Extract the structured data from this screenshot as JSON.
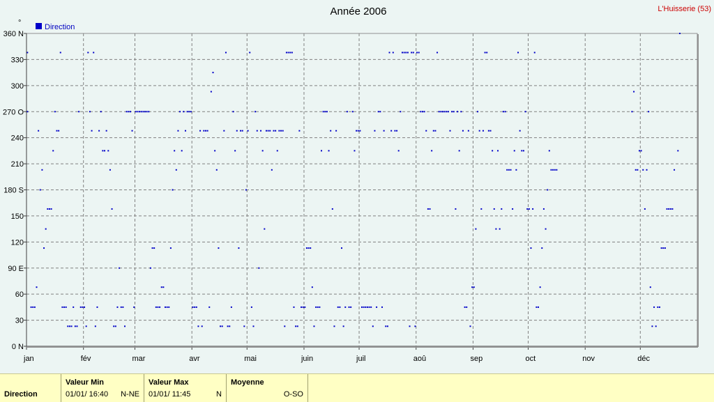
{
  "chart_data": {
    "type": "scatter",
    "title": "Année 2006",
    "station": "L'Huisserie (53)",
    "y_unit": "°",
    "legend": "Direction",
    "legend_position": "top-left",
    "grid": true,
    "ylim": [
      0,
      360
    ],
    "y_ticks": [
      {
        "v": 0,
        "label": "0  N"
      },
      {
        "v": 30,
        "label": "30"
      },
      {
        "v": 60,
        "label": "60"
      },
      {
        "v": 90,
        "label": "90  E"
      },
      {
        "v": 120,
        "label": "120"
      },
      {
        "v": 150,
        "label": "150"
      },
      {
        "v": 180,
        "label": "180 S"
      },
      {
        "v": 210,
        "label": "210"
      },
      {
        "v": 240,
        "label": "240"
      },
      {
        "v": 270,
        "label": "270 O"
      },
      {
        "v": 300,
        "label": "300"
      },
      {
        "v": 330,
        "label": "330"
      },
      {
        "v": 360,
        "label": "360 N"
      }
    ],
    "months": [
      "jan",
      "fév",
      "mar",
      "avr",
      "mai",
      "juin",
      "juil",
      "aoû",
      "sep",
      "oct",
      "nov",
      "déc"
    ],
    "colors": {
      "points": "#0000c8",
      "grid": "#808080",
      "plot_bg": "#ecf5f3"
    },
    "points": [
      [
        1,
        338
      ],
      [
        1,
        270
      ],
      [
        3,
        45
      ],
      [
        4,
        45
      ],
      [
        5,
        45
      ],
      [
        6,
        68
      ],
      [
        7,
        248
      ],
      [
        8,
        180
      ],
      [
        9,
        203
      ],
      [
        10,
        113
      ],
      [
        11,
        135
      ],
      [
        12,
        158
      ],
      [
        13,
        158
      ],
      [
        14,
        158
      ],
      [
        15,
        225
      ],
      [
        16,
        270
      ],
      [
        17,
        248
      ],
      [
        18,
        248
      ],
      [
        19,
        338
      ],
      [
        20,
        45
      ],
      [
        21,
        45
      ],
      [
        22,
        45
      ],
      [
        23,
        23
      ],
      [
        24,
        23
      ],
      [
        25,
        23
      ],
      [
        26,
        45
      ],
      [
        27,
        23
      ],
      [
        28,
        23
      ],
      [
        29,
        270
      ],
      [
        30,
        45
      ],
      [
        31,
        45
      ],
      [
        32,
        45
      ],
      [
        33,
        23
      ],
      [
        34,
        338
      ],
      [
        35,
        270
      ],
      [
        36,
        248
      ],
      [
        37,
        338
      ],
      [
        38,
        23
      ],
      [
        39,
        45
      ],
      [
        40,
        248
      ],
      [
        41,
        270
      ],
      [
        42,
        225
      ],
      [
        43,
        225
      ],
      [
        44,
        248
      ],
      [
        45,
        225
      ],
      [
        46,
        203
      ],
      [
        47,
        158
      ],
      [
        48,
        23
      ],
      [
        49,
        23
      ],
      [
        50,
        45
      ],
      [
        51,
        90
      ],
      [
        52,
        45
      ],
      [
        53,
        45
      ],
      [
        54,
        23
      ],
      [
        55,
        270
      ],
      [
        56,
        270
      ],
      [
        57,
        270
      ],
      [
        58,
        248
      ],
      [
        59,
        45
      ],
      [
        60,
        270
      ],
      [
        61,
        270
      ],
      [
        62,
        270
      ],
      [
        63,
        270
      ],
      [
        64,
        270
      ],
      [
        65,
        270
      ],
      [
        66,
        270
      ],
      [
        67,
        270
      ],
      [
        68,
        90
      ],
      [
        69,
        113
      ],
      [
        70,
        113
      ],
      [
        71,
        45
      ],
      [
        72,
        45
      ],
      [
        73,
        45
      ],
      [
        74,
        68
      ],
      [
        75,
        68
      ],
      [
        76,
        45
      ],
      [
        77,
        45
      ],
      [
        78,
        45
      ],
      [
        79,
        113
      ],
      [
        80,
        180
      ],
      [
        81,
        225
      ],
      [
        82,
        203
      ],
      [
        83,
        248
      ],
      [
        84,
        270
      ],
      [
        85,
        225
      ],
      [
        86,
        270
      ],
      [
        87,
        248
      ],
      [
        88,
        270
      ],
      [
        89,
        270
      ],
      [
        90,
        270
      ],
      [
        91,
        45
      ],
      [
        92,
        45
      ],
      [
        93,
        45
      ],
      [
        94,
        23
      ],
      [
        95,
        248
      ],
      [
        96,
        23
      ],
      [
        97,
        248
      ],
      [
        98,
        248
      ],
      [
        99,
        248
      ],
      [
        100,
        45
      ],
      [
        101,
        293
      ],
      [
        102,
        315
      ],
      [
        103,
        225
      ],
      [
        104,
        203
      ],
      [
        105,
        113
      ],
      [
        106,
        23
      ],
      [
        107,
        23
      ],
      [
        108,
        248
      ],
      [
        109,
        338
      ],
      [
        110,
        23
      ],
      [
        111,
        23
      ],
      [
        112,
        45
      ],
      [
        113,
        270
      ],
      [
        114,
        225
      ],
      [
        115,
        248
      ],
      [
        116,
        113
      ],
      [
        117,
        248
      ],
      [
        118,
        248
      ],
      [
        119,
        23
      ],
      [
        120,
        180
      ],
      [
        121,
        248
      ],
      [
        122,
        338
      ],
      [
        123,
        45
      ],
      [
        124,
        23
      ],
      [
        125,
        270
      ],
      [
        126,
        248
      ],
      [
        127,
        90
      ],
      [
        128,
        248
      ],
      [
        129,
        225
      ],
      [
        130,
        135
      ],
      [
        131,
        248
      ],
      [
        132,
        248
      ],
      [
        133,
        248
      ],
      [
        134,
        203
      ],
      [
        135,
        248
      ],
      [
        136,
        248
      ],
      [
        137,
        225
      ],
      [
        138,
        248
      ],
      [
        139,
        248
      ],
      [
        140,
        248
      ],
      [
        141,
        23
      ],
      [
        142,
        338
      ],
      [
        143,
        338
      ],
      [
        144,
        338
      ],
      [
        145,
        338
      ],
      [
        146,
        45
      ],
      [
        147,
        23
      ],
      [
        148,
        23
      ],
      [
        149,
        248
      ],
      [
        150,
        45
      ],
      [
        151,
        45
      ],
      [
        152,
        45
      ],
      [
        153,
        113
      ],
      [
        154,
        113
      ],
      [
        155,
        113
      ],
      [
        156,
        68
      ],
      [
        157,
        23
      ],
      [
        158,
        45
      ],
      [
        159,
        45
      ],
      [
        160,
        45
      ],
      [
        161,
        225
      ],
      [
        162,
        270
      ],
      [
        163,
        270
      ],
      [
        164,
        270
      ],
      [
        165,
        225
      ],
      [
        166,
        248
      ],
      [
        167,
        158
      ],
      [
        168,
        23
      ],
      [
        169,
        248
      ],
      [
        170,
        45
      ],
      [
        171,
        45
      ],
      [
        172,
        113
      ],
      [
        173,
        23
      ],
      [
        174,
        45
      ],
      [
        175,
        270
      ],
      [
        176,
        45
      ],
      [
        177,
        45
      ],
      [
        178,
        270
      ],
      [
        179,
        225
      ],
      [
        180,
        248
      ],
      [
        181,
        248
      ],
      [
        182,
        248
      ],
      [
        183,
        45
      ],
      [
        184,
        45
      ],
      [
        185,
        45
      ],
      [
        186,
        45
      ],
      [
        187,
        45
      ],
      [
        188,
        45
      ],
      [
        189,
        23
      ],
      [
        190,
        248
      ],
      [
        191,
        45
      ],
      [
        192,
        270
      ],
      [
        193,
        270
      ],
      [
        194,
        45
      ],
      [
        195,
        248
      ],
      [
        196,
        23
      ],
      [
        197,
        23
      ],
      [
        198,
        338
      ],
      [
        199,
        248
      ],
      [
        200,
        338
      ],
      [
        201,
        248
      ],
      [
        202,
        248
      ],
      [
        203,
        225
      ],
      [
        204,
        270
      ],
      [
        205,
        338
      ],
      [
        206,
        338
      ],
      [
        207,
        338
      ],
      [
        208,
        338
      ],
      [
        209,
        23
      ],
      [
        210,
        338
      ],
      [
        211,
        338
      ],
      [
        212,
        23
      ],
      [
        213,
        338
      ],
      [
        214,
        338
      ],
      [
        215,
        270
      ],
      [
        216,
        270
      ],
      [
        217,
        270
      ],
      [
        218,
        248
      ],
      [
        219,
        158
      ],
      [
        220,
        158
      ],
      [
        221,
        225
      ],
      [
        222,
        248
      ],
      [
        223,
        248
      ],
      [
        224,
        338
      ],
      [
        225,
        270
      ],
      [
        226,
        270
      ],
      [
        227,
        270
      ],
      [
        228,
        270
      ],
      [
        229,
        270
      ],
      [
        230,
        270
      ],
      [
        231,
        248
      ],
      [
        232,
        270
      ],
      [
        233,
        270
      ],
      [
        234,
        158
      ],
      [
        235,
        270
      ],
      [
        236,
        225
      ],
      [
        237,
        270
      ],
      [
        238,
        248
      ],
      [
        239,
        45
      ],
      [
        240,
        45
      ],
      [
        241,
        248
      ],
      [
        242,
        23
      ],
      [
        243,
        68
      ],
      [
        244,
        68
      ],
      [
        245,
        135
      ],
      [
        246,
        270
      ],
      [
        247,
        248
      ],
      [
        248,
        158
      ],
      [
        249,
        248
      ],
      [
        250,
        338
      ],
      [
        251,
        338
      ],
      [
        252,
        248
      ],
      [
        253,
        248
      ],
      [
        254,
        225
      ],
      [
        255,
        158
      ],
      [
        256,
        135
      ],
      [
        257,
        225
      ],
      [
        258,
        135
      ],
      [
        259,
        158
      ],
      [
        260,
        270
      ],
      [
        261,
        270
      ],
      [
        262,
        203
      ],
      [
        263,
        203
      ],
      [
        264,
        203
      ],
      [
        265,
        158
      ],
      [
        266,
        225
      ],
      [
        267,
        203
      ],
      [
        268,
        338
      ],
      [
        269,
        248
      ],
      [
        270,
        225
      ],
      [
        271,
        225
      ],
      [
        272,
        270
      ],
      [
        273,
        158
      ],
      [
        274,
        158
      ],
      [
        275,
        113
      ],
      [
        276,
        158
      ],
      [
        277,
        338
      ],
      [
        278,
        45
      ],
      [
        279,
        45
      ],
      [
        280,
        68
      ],
      [
        281,
        113
      ],
      [
        282,
        158
      ],
      [
        283,
        135
      ],
      [
        284,
        180
      ],
      [
        285,
        225
      ],
      [
        286,
        203
      ],
      [
        287,
        203
      ],
      [
        288,
        203
      ],
      [
        289,
        203
      ],
      [
        330,
        270
      ],
      [
        331,
        293
      ],
      [
        332,
        203
      ],
      [
        333,
        203
      ],
      [
        334,
        225
      ],
      [
        335,
        225
      ],
      [
        336,
        203
      ],
      [
        337,
        158
      ],
      [
        338,
        203
      ],
      [
        339,
        270
      ],
      [
        340,
        68
      ],
      [
        341,
        23
      ],
      [
        342,
        45
      ],
      [
        343,
        23
      ],
      [
        344,
        45
      ],
      [
        345,
        45
      ],
      [
        346,
        113
      ],
      [
        347,
        113
      ],
      [
        348,
        113
      ],
      [
        349,
        158
      ],
      [
        350,
        158
      ],
      [
        351,
        158
      ],
      [
        352,
        158
      ],
      [
        353,
        203
      ],
      [
        355,
        225
      ],
      [
        356,
        360
      ]
    ]
  },
  "footer": {
    "series": "Direction",
    "min_header": "Valeur Min",
    "min_value": "01/01/ 16:40",
    "min_dir": "N-NE",
    "max_header": "Valeur Max",
    "max_value": "01/01/ 11:45",
    "max_dir": "N",
    "avg_header": "Moyenne",
    "avg_value": "O-SO"
  }
}
